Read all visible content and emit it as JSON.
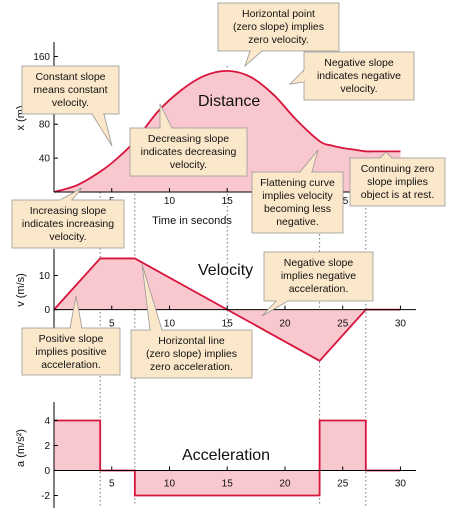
{
  "colors": {
    "fill": "#f9c8cf",
    "line": "#d8143c",
    "note_bg": "#fbe7c9",
    "note_border": "#999999",
    "axis": "#000000",
    "guide": "#777777"
  },
  "chart_data": [
    {
      "type": "area",
      "panel": "distance",
      "title": "Distance",
      "ylabel": "x (m)",
      "xlabel": "Time in seconds",
      "xlim": [
        0,
        31
      ],
      "ylim": [
        0,
        170
      ],
      "xticks": [
        "5",
        "10",
        "15",
        "20",
        "25",
        "30"
      ],
      "yticks": [
        "40",
        "80",
        "120",
        "160"
      ],
      "x": [
        0,
        2,
        4,
        5.5,
        7,
        9,
        11,
        13,
        15,
        17,
        19,
        21,
        23,
        24,
        25,
        26,
        27,
        28,
        29,
        30
      ],
      "y": [
        0,
        8,
        24,
        40,
        60,
        95,
        120,
        137,
        143,
        136,
        115,
        85,
        60,
        55,
        52,
        50,
        48,
        48,
        48,
        48
      ],
      "series": [
        {
          "values": [
            0,
            8,
            24,
            40,
            60,
            95,
            120,
            137,
            143,
            136,
            115,
            85,
            60,
            55,
            52,
            50,
            48,
            48,
            48,
            48
          ]
        }
      ]
    },
    {
      "type": "area",
      "panel": "velocity",
      "title": "Velocity",
      "ylabel": "v (m/s)",
      "xlim": [
        0,
        31
      ],
      "ylim": [
        -13,
        16
      ],
      "xticks": [
        "5",
        "10",
        "15",
        "20",
        "25",
        "30"
      ],
      "yticks": [
        "0",
        "10"
      ],
      "x": [
        0,
        4,
        7,
        15,
        23,
        27,
        30
      ],
      "y": [
        0,
        15,
        15,
        0,
        -15,
        0,
        0
      ],
      "series": [
        {
          "values": [
            0,
            15,
            15,
            0,
            -15,
            0,
            0
          ]
        }
      ]
    },
    {
      "type": "area",
      "panel": "acceleration",
      "title": "Acceleration",
      "ylabel": "a (m/s²)",
      "xlim": [
        0,
        31
      ],
      "ylim": [
        -3,
        5
      ],
      "xticks": [
        "5",
        "10",
        "15",
        "20",
        "25",
        "30"
      ],
      "yticks": [
        "4",
        "2",
        "0",
        "-2"
      ],
      "x": [
        0,
        4,
        4,
        7,
        7,
        23,
        23,
        27,
        27,
        30
      ],
      "y": [
        4,
        4,
        0,
        0,
        -2,
        -2,
        4,
        4,
        0,
        0
      ],
      "series": [
        {
          "values": [
            4,
            4,
            0,
            0,
            -2,
            -2,
            4,
            4,
            0,
            0
          ]
        }
      ]
    }
  ],
  "annotations": {
    "horizontal_point": [
      "Horizontal point",
      "(zero slope) implies",
      "zero velocity."
    ],
    "constant_slope": [
      "Constant slope",
      "means constant",
      "velocity."
    ],
    "negative_slope": [
      "Negative slope",
      "indicates negative",
      "velocity."
    ],
    "decreasing_slope": [
      "Decreasing slope",
      "indicates decreasing",
      "velocity."
    ],
    "increasing_slope": [
      "Increasing slope",
      "indicates increasing",
      "velocity."
    ],
    "flattening_curve": [
      "Flattening curve",
      "implies velocity",
      "becoming less",
      "negative."
    ],
    "continuing_zero": [
      "Continuing zero",
      "slope implies",
      "object is at rest."
    ],
    "negative_accel": [
      "Negative slope",
      "implies negative",
      "acceleration."
    ],
    "positive_accel": [
      "Positive slope",
      "implies positive",
      "acceleration."
    ],
    "horizontal_line": [
      "Horizontal line",
      "(zero slope) implies",
      "zero acceleration."
    ]
  }
}
